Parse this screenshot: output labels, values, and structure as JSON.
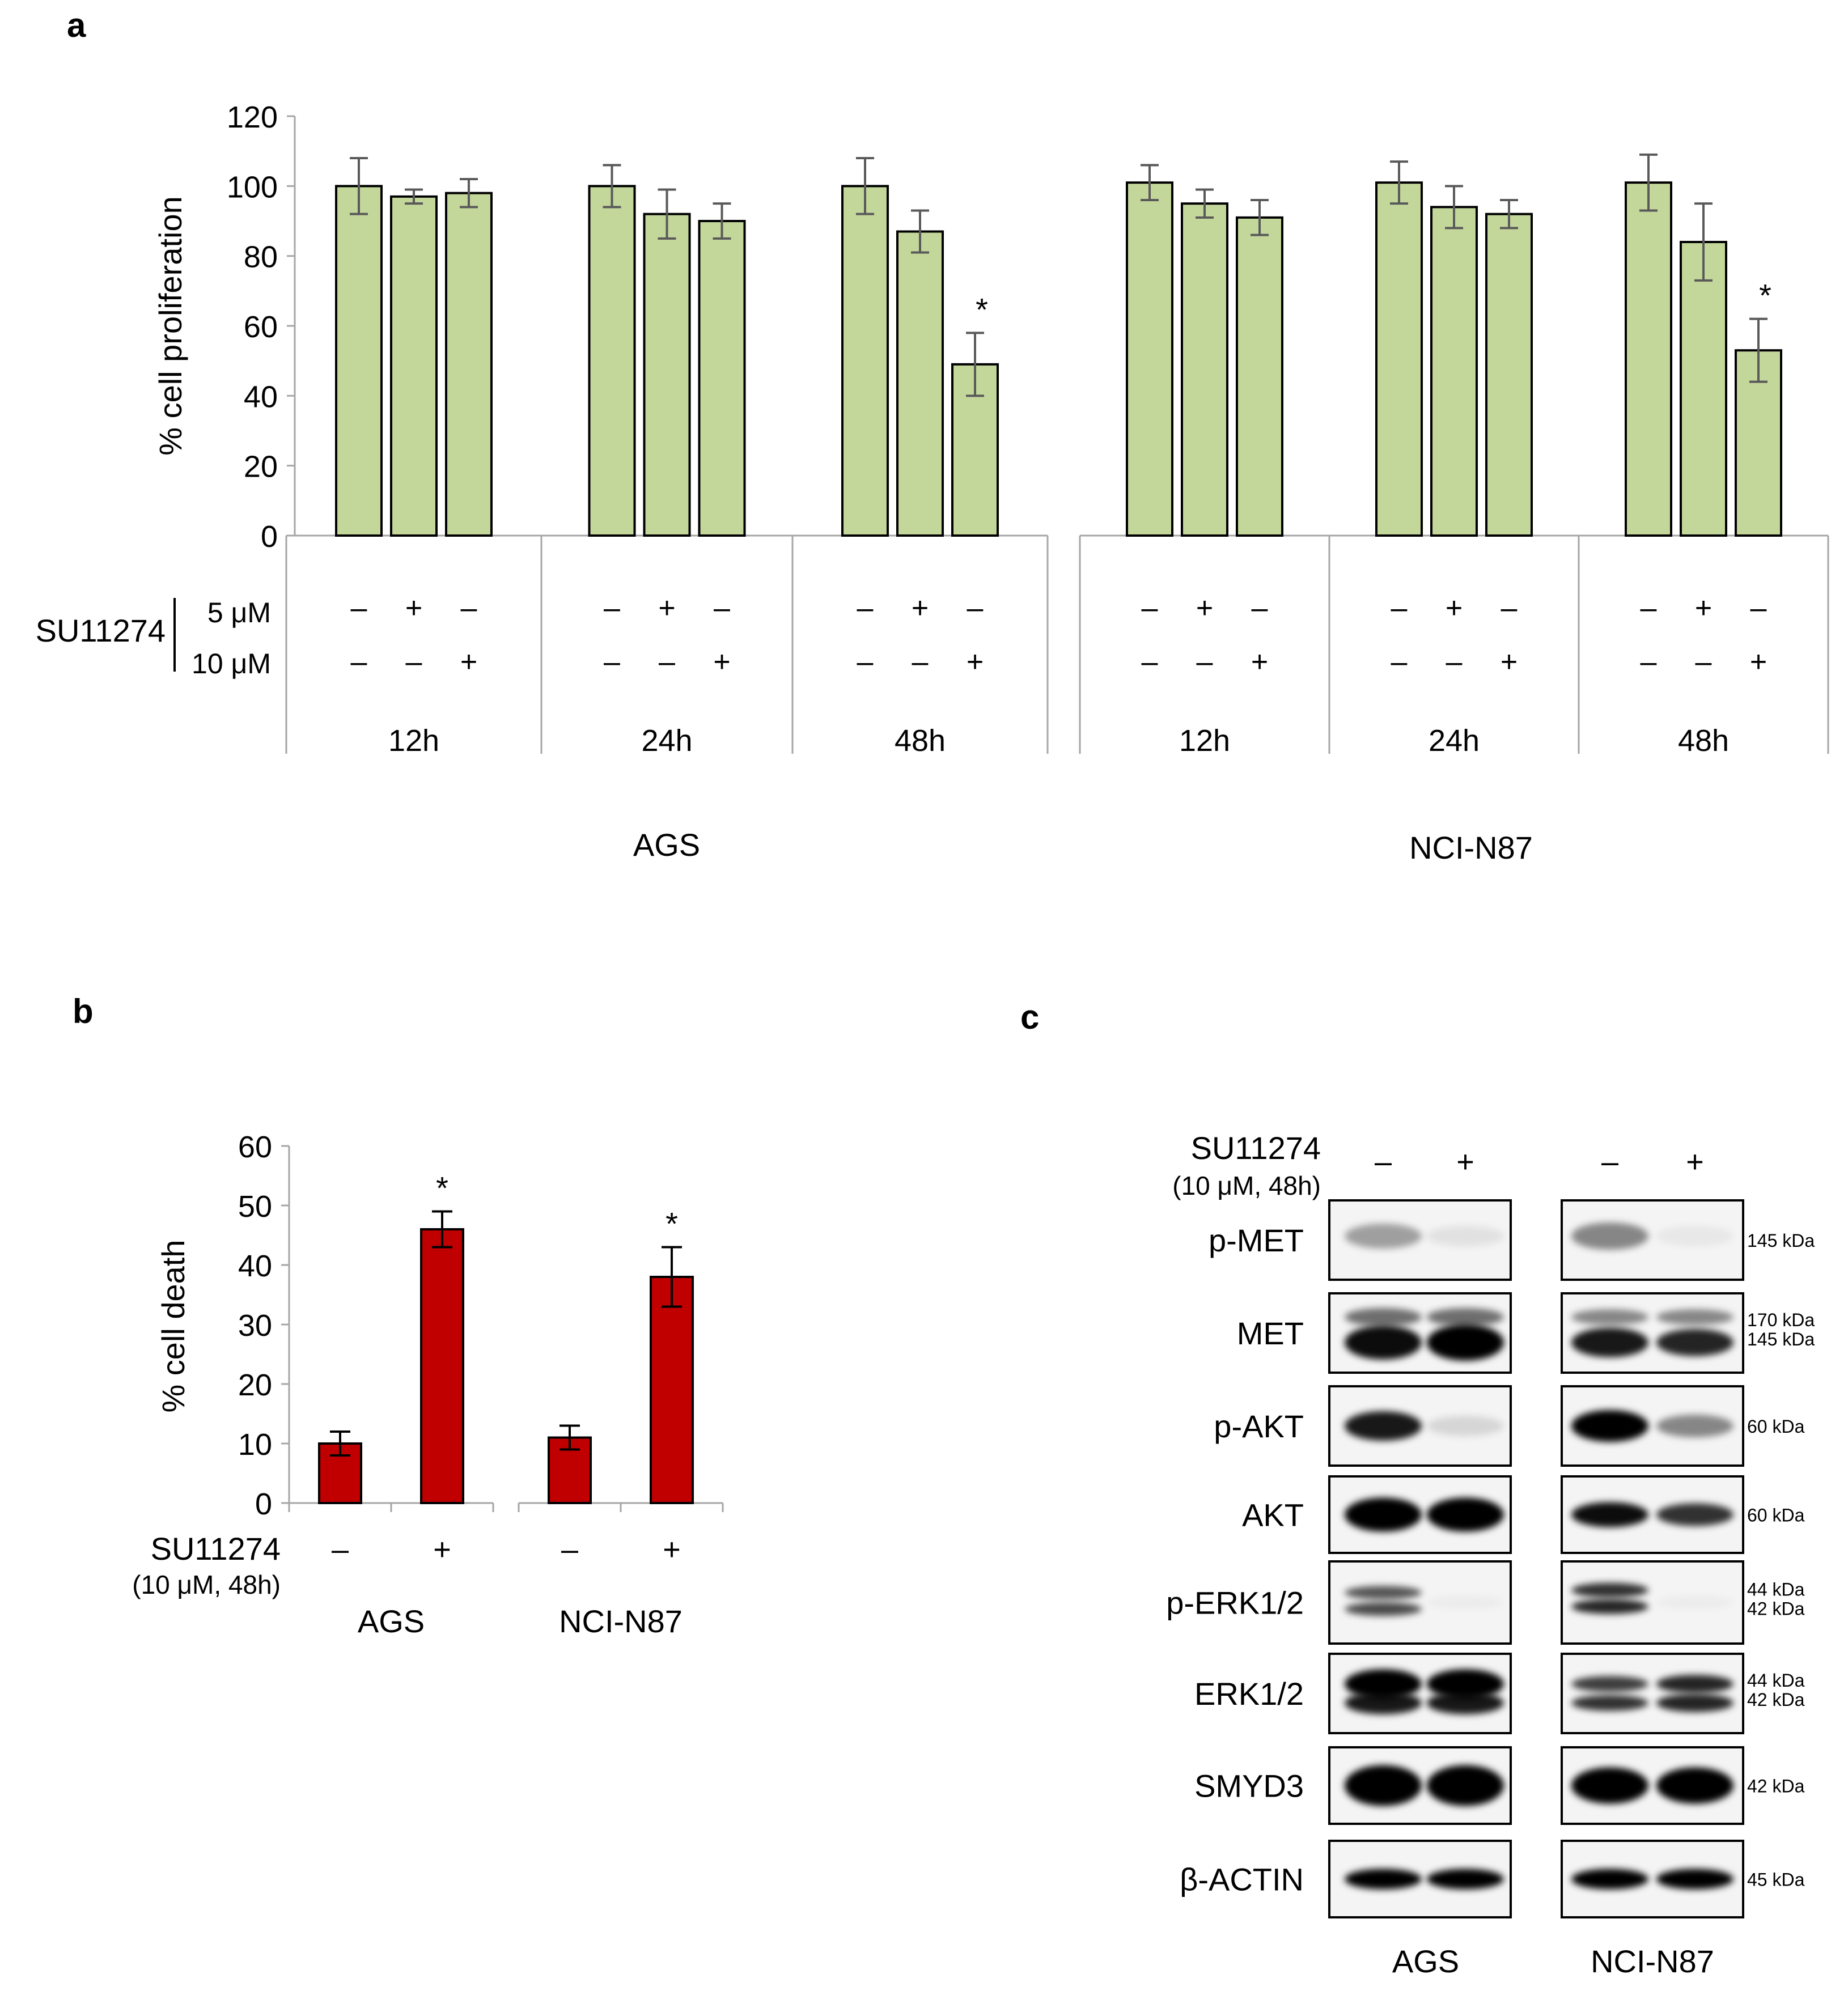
{
  "panels": {
    "a": "a",
    "b": "b",
    "c": "c"
  },
  "chart_data": [
    {
      "id": "a",
      "type": "bar",
      "ylabel": "% cell proliferation",
      "ylim": [
        0,
        120
      ],
      "yticks": [
        0,
        20,
        40,
        60,
        80,
        100,
        120
      ],
      "bar_color": "#c4d79b",
      "bar_edge_color": "#000000",
      "error_color": "#595959",
      "treatment_label": "SU11274",
      "dose_labels": [
        "5 μM",
        "10 μM"
      ],
      "groups": [
        {
          "cell_line": "AGS",
          "time": "12h",
          "values": [
            100,
            97,
            98
          ],
          "errors": [
            8,
            2,
            4
          ],
          "sig": [
            false,
            false,
            false
          ]
        },
        {
          "cell_line": "AGS",
          "time": "24h",
          "values": [
            100,
            92,
            90
          ],
          "errors": [
            6,
            7,
            5
          ],
          "sig": [
            false,
            false,
            false
          ]
        },
        {
          "cell_line": "AGS",
          "time": "48h",
          "values": [
            100,
            87,
            49
          ],
          "errors": [
            8,
            6,
            9
          ],
          "sig": [
            false,
            false,
            true
          ]
        },
        {
          "cell_line": "NCI-N87",
          "time": "12h",
          "values": [
            101,
            95,
            91
          ],
          "errors": [
            5,
            4,
            5
          ],
          "sig": [
            false,
            false,
            false
          ]
        },
        {
          "cell_line": "NCI-N87",
          "time": "24h",
          "values": [
            101,
            94,
            92
          ],
          "errors": [
            6,
            6,
            4
          ],
          "sig": [
            false,
            false,
            false
          ]
        },
        {
          "cell_line": "NCI-N87",
          "time": "48h",
          "values": [
            101,
            84,
            53
          ],
          "errors": [
            8,
            11,
            9
          ],
          "sig": [
            false,
            false,
            true
          ]
        }
      ],
      "dose_5uM_signs": [
        "–",
        "+",
        "–"
      ],
      "dose_10uM_signs": [
        "–",
        "–",
        "+"
      ],
      "cell_lines": [
        "AGS",
        "NCI-N87"
      ],
      "sig_marker": "*"
    },
    {
      "id": "b",
      "type": "bar",
      "ylabel": "% cell death",
      "ylim": [
        0,
        60
      ],
      "yticks": [
        0,
        10,
        20,
        30,
        40,
        50,
        60
      ],
      "bar_color": "#c00000",
      "bar_edge_color": "#000000",
      "error_color": "#000000",
      "treatment_label": "SU11274",
      "treatment_sub": "(10 μM, 48h)",
      "groups": [
        {
          "cell_line": "AGS",
          "values": [
            10,
            46
          ],
          "errors": [
            2,
            3
          ],
          "signs": [
            "–",
            "+"
          ],
          "sig": [
            false,
            true
          ]
        },
        {
          "cell_line": "NCI-N87",
          "values": [
            11,
            38
          ],
          "errors": [
            2,
            5
          ],
          "signs": [
            "–",
            "+"
          ],
          "sig": [
            false,
            true
          ]
        }
      ],
      "sig_marker": "*"
    }
  ],
  "blot": {
    "treatment_label": "SU11274",
    "treatment_sub": "(10 μM, 48h)",
    "signs": [
      "–",
      "+"
    ],
    "cell_lines": [
      "AGS",
      "NCI-N87"
    ],
    "rows": [
      {
        "label": "p-MET",
        "kda": [
          "145 kDa"
        ]
      },
      {
        "label": "MET",
        "kda": [
          "170 kDa",
          "145 kDa"
        ]
      },
      {
        "label": "p-AKT",
        "kda": [
          "60 kDa"
        ]
      },
      {
        "label": "AKT",
        "kda": [
          "60 kDa"
        ]
      },
      {
        "label": "p-ERK1/2",
        "kda": [
          "44 kDa",
          "42 kDa"
        ]
      },
      {
        "label": "ERK1/2",
        "kda": [
          "44 kDa",
          "42 kDa"
        ]
      },
      {
        "label": "SMYD3",
        "kda": [
          "42 kDa"
        ]
      },
      {
        "label": "β-ACTIN",
        "kda": [
          "45 kDa"
        ]
      }
    ]
  }
}
